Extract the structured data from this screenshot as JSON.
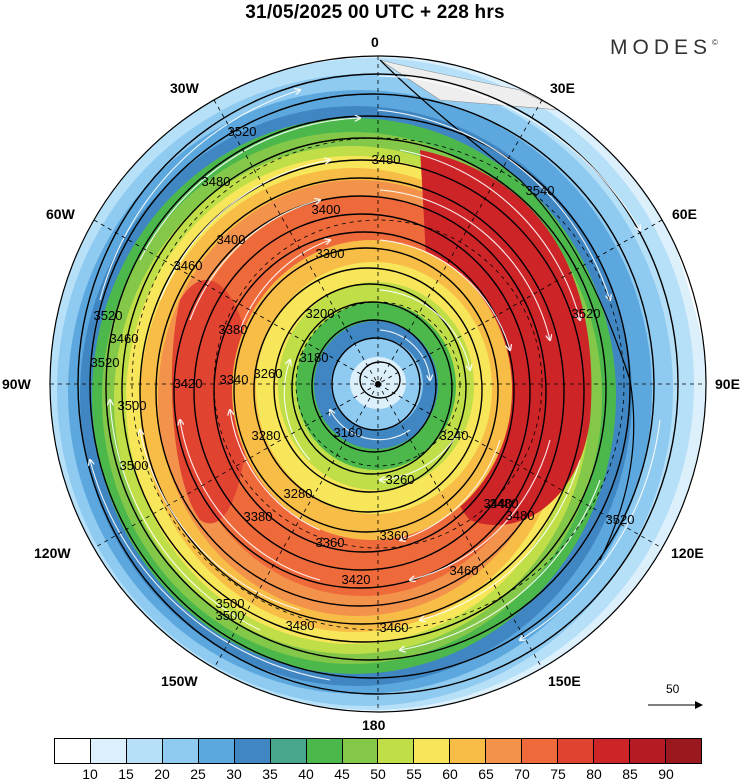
{
  "title": "31/05/2025  00 UTC  + 228 hrs",
  "brand": "MODES",
  "brand_mark": "©",
  "longitude_labels": {
    "top": "0",
    "top_right": "30E",
    "upper_right": "60E",
    "right": "90E",
    "lower_right": "120E",
    "bottom_right": "150E",
    "bottom": "180",
    "bottom_left": "150W",
    "lower_left": "120W",
    "left": "90W",
    "upper_left": "60W",
    "top_left": "30W"
  },
  "contour_labels": [
    "3520",
    "3480",
    "3540",
    "3480",
    "3400",
    "3300",
    "3200",
    "3380",
    "3400",
    "3460",
    "3520",
    "3460",
    "3520",
    "3180",
    "3260",
    "3340",
    "3420",
    "3500",
    "3500",
    "3160",
    "3240",
    "3280",
    "3260",
    "3280",
    "3360",
    "3360",
    "3380",
    "3420",
    "3460",
    "3480",
    "3500",
    "3480",
    "3460",
    "3500",
    "3520",
    "3520",
    "3440",
    "3480"
  ],
  "reference_vector": {
    "value": "50"
  },
  "colorbar": {
    "colors": [
      "#ffffff",
      "#dcf0fc",
      "#b6e0f8",
      "#8fcaf0",
      "#5ca8de",
      "#3f86c2",
      "#47a68c",
      "#4cb84c",
      "#84c84a",
      "#c0de48",
      "#f8e65a",
      "#f7bd47",
      "#f3924a",
      "#ee6a3b",
      "#e14331",
      "#cd2428",
      "#b51b22",
      "#99191e"
    ],
    "tick_labels": [
      "10",
      "15",
      "20",
      "25",
      "30",
      "35",
      "40",
      "45",
      "50",
      "55",
      "60",
      "65",
      "70",
      "75",
      "80",
      "85",
      "90"
    ]
  }
}
